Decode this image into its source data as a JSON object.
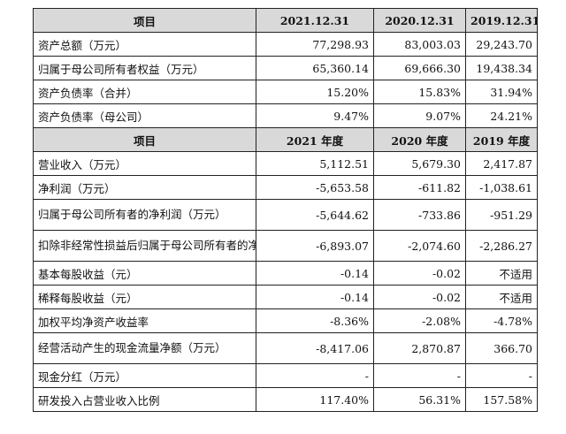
{
  "header1": [
    "项目",
    "2021.12.31",
    "2020.12.31",
    "2019.12.31"
  ],
  "rows1": [
    {
      "label": "资产总额（万元）",
      "values": [
        "77,298.93",
        "83,003.03",
        "29,243.70"
      ]
    },
    {
      "label": "归属于母公司所有者权益（万元）",
      "values": [
        "65,360.14",
        "69,666.30",
        "19,438.34"
      ]
    },
    {
      "label": "资产负债率（合并）",
      "values": [
        "15.20%",
        "15.83%",
        "31.94%"
      ]
    },
    {
      "label": "资产负债率（母公司）",
      "values": [
        "9.47%",
        "9.07%",
        "24.21%"
      ]
    }
  ],
  "header2": [
    "项目",
    "2021 年度",
    "2020 年度",
    "2019 年度"
  ],
  "rows2": [
    {
      "label": "营业收入（万元）",
      "values": [
        "5,112.51",
        "5,679.30",
        "2,417.87"
      ],
      "tall": false
    },
    {
      "label": "净利润（万元）",
      "values": [
        "-5,653.58",
        "-611.82",
        "-1,038.61"
      ],
      "tall": false
    },
    {
      "label": "归属于母公司所有者的净利润（万元）",
      "values": [
        "-5,644.62",
        "-733.86",
        "-951.29"
      ],
      "tall": true
    },
    {
      "label": "扣除非经常性损益后归属于母公司所有者的净利润（万元）",
      "values": [
        "-6,893.07",
        "-2,074.60",
        "-2,286.27"
      ],
      "tall": true
    },
    {
      "label": "基本每股收益（元）",
      "values": [
        "-0.14",
        "-0.02",
        "不适用"
      ],
      "tall": false
    },
    {
      "label": "稀释每股收益（元）",
      "values": [
        "-0.14",
        "-0.02",
        "不适用"
      ],
      "tall": false
    },
    {
      "label": "加权平均净资产收益率",
      "values": [
        "-8.36%",
        "-2.08%",
        "-4.78%"
      ],
      "tall": false
    },
    {
      "label": "经营活动产生的现金流量净额（万元）",
      "values": [
        "-8,417.06",
        "2,870.87",
        "366.70"
      ],
      "tall": true
    },
    {
      "label": "现金分红（万元）",
      "values": [
        "-",
        "-",
        "-"
      ],
      "tall": false
    },
    {
      "label": "研发投入占营业收入比例",
      "values": [
        "117.40%",
        "56.31%",
        "157.58%"
      ],
      "tall": false
    }
  ]
}
